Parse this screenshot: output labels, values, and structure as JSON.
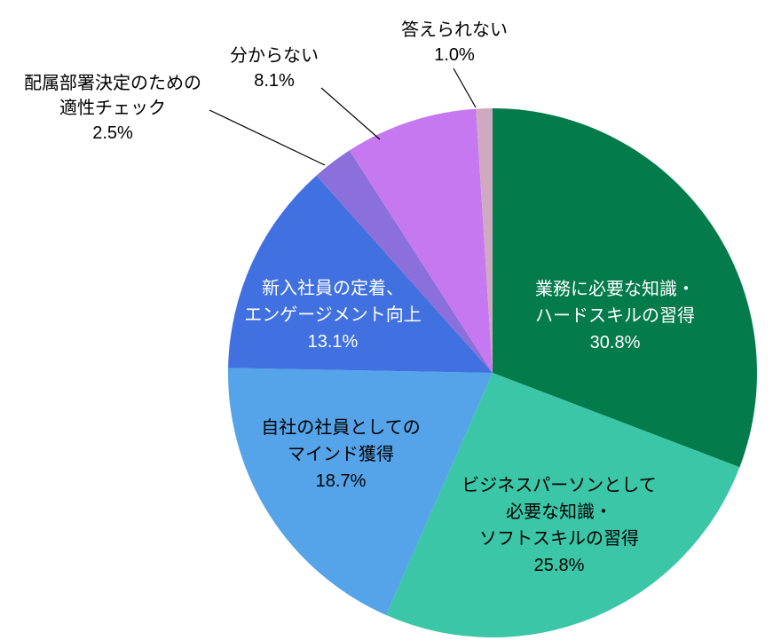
{
  "chart_data": {
    "type": "pie",
    "title": "",
    "unit": "%",
    "total": 100.0,
    "direction": "clockwise",
    "start_angle": "12-o-clock",
    "background_color": "#ffffff",
    "leader_line_color": "#000000",
    "slices": [
      {
        "label": "業務に必要な知識・ハードスキルの習得",
        "label_lines": [
          "業務に必要な知識・",
          "ハードスキルの習得"
        ],
        "value": 30.8,
        "pct_text": "30.8%",
        "color": "#047b4a",
        "label_color": "#ffffff",
        "label_position": "inside"
      },
      {
        "label": "ビジネスパーソンとして必要な知識・ソフトスキルの習得",
        "label_lines": [
          "ビジネスパーソンとして",
          "必要な知識・",
          "ソフトスキルの習得"
        ],
        "value": 25.8,
        "pct_text": "25.8%",
        "color": "#3bc6a8",
        "label_color": "#000000",
        "label_position": "inside"
      },
      {
        "label": "自社の社員としてのマインド獲得",
        "label_lines": [
          "自社の社員としての",
          "マインド獲得"
        ],
        "value": 18.7,
        "pct_text": "18.7%",
        "color": "#55a3e8",
        "label_color": "#000000",
        "label_position": "inside"
      },
      {
        "label": "新入社員の定着、エンゲージメント向上",
        "label_lines": [
          "新入社員の定着、",
          "エンゲージメント向上"
        ],
        "value": 13.1,
        "pct_text": "13.1%",
        "color": "#4170e0",
        "label_color": "#ffffff",
        "label_position": "inside"
      },
      {
        "label": "配属部署決定のための適性チェック",
        "label_lines": [
          "配属部署決定のための",
          "適性チェック"
        ],
        "value": 2.5,
        "pct_text": "2.5%",
        "color": "#8b70dc",
        "label_color": "#000000",
        "label_position": "outside"
      },
      {
        "label": "分からない",
        "label_lines": [
          "分からない"
        ],
        "value": 8.1,
        "pct_text": "8.1%",
        "color": "#c678f0",
        "label_color": "#000000",
        "label_position": "outside"
      },
      {
        "label": "答えられない",
        "label_lines": [
          "答えられない"
        ],
        "value": 1.0,
        "pct_text": "1.0%",
        "color": "#cfa9bf",
        "label_color": "#000000",
        "label_position": "outside"
      }
    ]
  }
}
